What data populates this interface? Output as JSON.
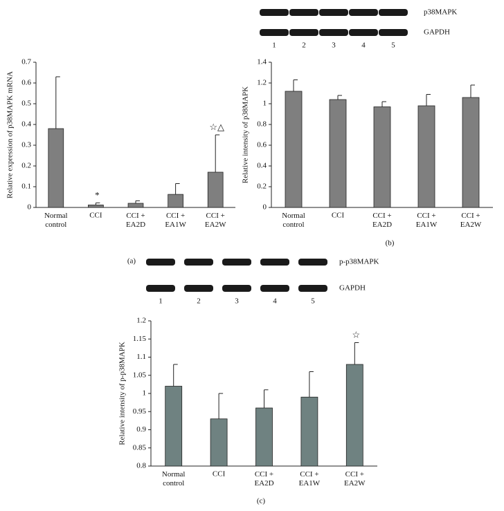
{
  "chart_data": [
    {
      "type": "bar",
      "panel_label": "(a)",
      "y_label": "Relative expression of p38MAPK mRNA",
      "categories": [
        "Normal\ncontrol",
        "CCI",
        "CCI +\nEA2D",
        "CCI +\nEA1W",
        "CCI +\nEA2W"
      ],
      "values": [
        0.38,
        0.012,
        0.02,
        0.063,
        0.17
      ],
      "errors": [
        0.25,
        0.01,
        0.012,
        0.052,
        0.18
      ],
      "annotations": [
        null,
        "*",
        null,
        null,
        "☆△"
      ],
      "color": "#7f7f7f",
      "ylim": [
        0,
        0.7
      ],
      "yticks": [
        0,
        0.1,
        0.2,
        0.3,
        0.4,
        0.5,
        0.6,
        0.7
      ]
    },
    {
      "type": "bar",
      "panel_label": "(b)",
      "y_label": "Relative intensity of p38MAPK",
      "blot": {
        "bands": [
          "p38MAPK",
          "GAPDH"
        ],
        "lanes": [
          "1",
          "2",
          "3",
          "4",
          "5"
        ]
      },
      "categories": [
        "Normal\ncontrol",
        "CCI",
        "CCI +\nEA2D",
        "CCI +\nEA1W",
        "CCI +\nEA2W"
      ],
      "values": [
        1.12,
        1.04,
        0.97,
        0.98,
        1.06
      ],
      "errors": [
        0.11,
        0.04,
        0.05,
        0.11,
        0.12
      ],
      "color": "#7f7f7f",
      "ylim": [
        0,
        1.4
      ],
      "yticks": [
        0,
        0.2,
        0.4,
        0.6,
        0.8,
        1,
        1.2,
        1.4
      ]
    },
    {
      "type": "bar",
      "panel_label": "(c)",
      "y_label": "Relative intensity of p-p38MAPK",
      "blot": {
        "bands": [
          "p-p38MAPK",
          "GAPDH"
        ],
        "lanes": [
          "1",
          "2",
          "3",
          "4",
          "5"
        ]
      },
      "categories": [
        "Normal\ncontrol",
        "CCI",
        "CCI +\nEA2D",
        "CCI +\nEA1W",
        "CCI +\nEA2W"
      ],
      "values": [
        1.02,
        0.93,
        0.96,
        0.99,
        1.08
      ],
      "errors": [
        0.06,
        0.07,
        0.05,
        0.07,
        0.06
      ],
      "annotations": [
        null,
        null,
        null,
        null,
        "☆"
      ],
      "color": "#6f8281",
      "ylim": [
        0.8,
        1.2
      ],
      "yticks": [
        0.8,
        0.85,
        0.9,
        0.95,
        1,
        1.05,
        1.1,
        1.15,
        1.2
      ]
    }
  ]
}
